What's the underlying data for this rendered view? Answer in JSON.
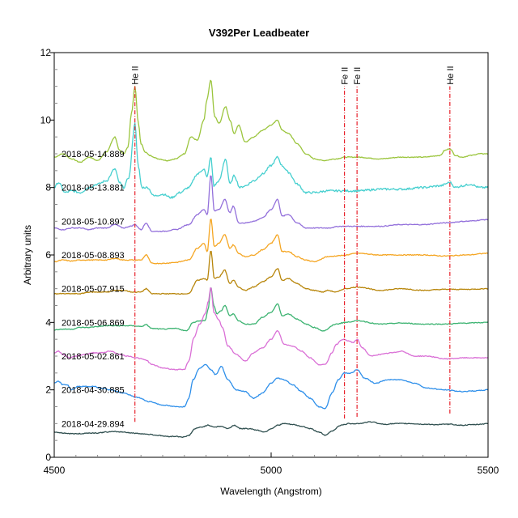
{
  "chart_data": {
    "type": "line",
    "title": "V392Per   Leadbeater",
    "xlabel": "Wavelength (Angstrom)",
    "ylabel": "Arbitrary units",
    "xlim": [
      4500,
      5500
    ],
    "ylim": [
      0,
      12
    ],
    "x_ticks": [
      4500,
      5000,
      5500
    ],
    "x_tick_labels": [
      "4500",
      "5000",
      "5500"
    ],
    "x_minor_step": 50,
    "y_ticks": [
      0,
      2,
      4,
      6,
      8,
      10,
      12
    ],
    "y_tick_labels": [
      "0",
      "2",
      "4",
      "6",
      "8",
      "10",
      "12"
    ],
    "y_minor_step": 0.5,
    "grid": false,
    "legend": "inline labels at left of each spectrum",
    "markers": [
      {
        "label": "He II",
        "wavelength": 4686,
        "y_range": [
          1.05,
          11.0
        ],
        "color": "#e8202a"
      },
      {
        "label": "Fe II",
        "wavelength": 5169,
        "y_range": [
          1.15,
          11.0
        ],
        "color": "#e8202a"
      },
      {
        "label": "Fe II",
        "wavelength": 5198,
        "y_range": [
          1.2,
          11.0
        ],
        "color": "#e8202a"
      },
      {
        "label": "He II",
        "wavelength": 5412,
        "y_range": [
          1.3,
          11.0
        ],
        "color": "#e8202a"
      }
    ],
    "series": [
      {
        "name": "2018-05-14.889",
        "color": "#9bc53d",
        "label_y": 9.0,
        "x": [
          4500,
          4520,
          4540,
          4560,
          4580,
          4600,
          4620,
          4640,
          4650,
          4660,
          4670,
          4678,
          4686,
          4694,
          4700,
          4710,
          4720,
          4740,
          4760,
          4780,
          4800,
          4815,
          4830,
          4845,
          4852,
          4861,
          4870,
          4880,
          4895,
          4905,
          4915,
          4925,
          4940,
          4960,
          4980,
          5000,
          5015,
          5025,
          5040,
          5060,
          5080,
          5100,
          5120,
          5150,
          5170,
          5200,
          5250,
          5300,
          5350,
          5390,
          5400,
          5412,
          5425,
          5440,
          5460,
          5480,
          5500
        ],
        "y": [
          8.9,
          9.0,
          8.85,
          8.75,
          8.9,
          8.8,
          9.05,
          9.5,
          9.1,
          9.0,
          9.2,
          10.2,
          11.0,
          9.9,
          9.3,
          9.05,
          8.95,
          8.85,
          8.8,
          8.85,
          9.0,
          9.5,
          9.4,
          10.0,
          10.6,
          11.2,
          10.1,
          9.9,
          10.4,
          10.0,
          9.6,
          9.85,
          9.35,
          9.5,
          9.7,
          9.85,
          10.0,
          9.7,
          9.6,
          9.3,
          9.0,
          8.85,
          8.8,
          8.85,
          8.9,
          8.9,
          8.85,
          8.9,
          8.9,
          8.95,
          9.1,
          9.15,
          8.95,
          8.9,
          8.95,
          9.0,
          9.0
        ]
      },
      {
        "name": "2018-05-13.881",
        "color": "#45cfcf",
        "label_y": 8.0,
        "x": [
          4500,
          4510,
          4525,
          4540,
          4560,
          4580,
          4600,
          4620,
          4640,
          4650,
          4660,
          4672,
          4686,
          4694,
          4702,
          4715,
          4730,
          4750,
          4770,
          4790,
          4810,
          4830,
          4845,
          4852,
          4861,
          4868,
          4880,
          4895,
          4905,
          4915,
          4928,
          4940,
          4960,
          4980,
          5000,
          5015,
          5025,
          5040,
          5060,
          5080,
          5100,
          5130,
          5160,
          5200,
          5250,
          5300,
          5350,
          5390,
          5412,
          5425,
          5440,
          5460,
          5480,
          5500
        ],
        "y": [
          8.0,
          8.15,
          7.85,
          7.9,
          7.85,
          8.0,
          8.1,
          8.2,
          8.55,
          8.15,
          8.0,
          8.3,
          9.9,
          8.6,
          8.0,
          8.0,
          7.75,
          7.8,
          7.7,
          7.85,
          8.0,
          8.4,
          8.55,
          8.3,
          8.9,
          8.05,
          8.2,
          8.85,
          8.1,
          8.35,
          8.0,
          8.05,
          8.2,
          8.4,
          8.65,
          8.9,
          8.65,
          8.45,
          8.1,
          7.85,
          7.85,
          7.9,
          7.9,
          7.9,
          7.95,
          7.95,
          8.0,
          8.05,
          8.15,
          8.0,
          8.05,
          8.1,
          8.0,
          8.0
        ]
      },
      {
        "name": "2018-05-10.897",
        "color": "#9370db",
        "label_y": 7.0,
        "x": [
          4500,
          4520,
          4540,
          4560,
          4580,
          4600,
          4620,
          4640,
          4660,
          4675,
          4686,
          4700,
          4712,
          4725,
          4750,
          4780,
          4810,
          4830,
          4845,
          4853,
          4861,
          4869,
          4880,
          4893,
          4905,
          4913,
          4925,
          4940,
          4960,
          4980,
          5000,
          5015,
          5025,
          5040,
          5060,
          5080,
          5100,
          5130,
          5160,
          5200,
          5250,
          5300,
          5350,
          5400,
          5450,
          5500
        ],
        "y": [
          6.8,
          6.75,
          6.8,
          6.8,
          6.75,
          6.8,
          6.8,
          6.9,
          6.8,
          6.85,
          6.9,
          6.75,
          6.95,
          6.7,
          6.7,
          6.75,
          6.9,
          7.2,
          7.35,
          7.2,
          8.4,
          7.3,
          7.35,
          7.65,
          7.25,
          7.45,
          6.95,
          6.95,
          7.0,
          7.1,
          7.35,
          7.65,
          7.15,
          7.2,
          6.95,
          6.8,
          6.8,
          6.8,
          6.85,
          6.85,
          6.85,
          6.9,
          6.9,
          6.95,
          7.0,
          7.05
        ]
      },
      {
        "name": "2018-05-08.893",
        "color": "#f5a623",
        "label_y": 6.0,
        "x": [
          4500,
          4520,
          4540,
          4560,
          4580,
          4600,
          4620,
          4640,
          4660,
          4680,
          4700,
          4712,
          4725,
          4750,
          4780,
          4810,
          4830,
          4845,
          4853,
          4861,
          4869,
          4880,
          4893,
          4905,
          4913,
          4925,
          4940,
          4960,
          4980,
          5000,
          5015,
          5025,
          5040,
          5060,
          5080,
          5100,
          5130,
          5160,
          5200,
          5250,
          5300,
          5350,
          5400,
          5450,
          5500
        ],
        "y": [
          5.8,
          5.85,
          5.82,
          5.85,
          5.85,
          5.85,
          5.85,
          5.9,
          5.85,
          5.85,
          5.85,
          6.0,
          5.75,
          5.75,
          5.78,
          5.85,
          6.2,
          6.35,
          6.1,
          7.1,
          6.25,
          6.35,
          6.6,
          6.2,
          6.3,
          6.05,
          5.95,
          6.0,
          6.15,
          6.35,
          6.6,
          6.1,
          6.1,
          5.95,
          5.85,
          5.8,
          5.95,
          5.98,
          6.05,
          6.0,
          6.0,
          6.0,
          5.97,
          6.0,
          6.05
        ]
      },
      {
        "name": "2018-05-07.915",
        "color": "#b8860b",
        "label_y": 5.0,
        "x": [
          4500,
          4520,
          4540,
          4560,
          4580,
          4600,
          4620,
          4640,
          4660,
          4680,
          4700,
          4712,
          4725,
          4750,
          4780,
          4810,
          4830,
          4845,
          4853,
          4861,
          4869,
          4880,
          4893,
          4905,
          4913,
          4925,
          4940,
          4960,
          4980,
          5000,
          5015,
          5025,
          5040,
          5060,
          5080,
          5100,
          5120,
          5130,
          5150,
          5170,
          5200,
          5250,
          5300,
          5350,
          5400,
          5450,
          5500
        ],
        "y": [
          4.85,
          4.85,
          4.85,
          4.85,
          4.9,
          4.9,
          4.9,
          4.95,
          4.95,
          4.9,
          4.9,
          5.0,
          4.85,
          4.85,
          4.85,
          4.85,
          5.25,
          5.3,
          5.25,
          6.15,
          5.3,
          5.35,
          5.55,
          5.15,
          5.25,
          5.05,
          4.95,
          5.05,
          5.2,
          5.35,
          5.6,
          5.25,
          5.3,
          5.15,
          5.0,
          4.95,
          4.9,
          4.95,
          4.9,
          5.0,
          5.05,
          4.95,
          5.0,
          4.95,
          4.98,
          4.98,
          5.0
        ]
      },
      {
        "name": "2018-05-06.869",
        "color": "#3cb371",
        "label_y": 4.0,
        "x": [
          4500,
          4520,
          4540,
          4560,
          4580,
          4600,
          4620,
          4640,
          4660,
          4680,
          4700,
          4712,
          4725,
          4750,
          4780,
          4805,
          4820,
          4835,
          4848,
          4855,
          4861,
          4868,
          4875,
          4885,
          4893,
          4905,
          4913,
          4925,
          4940,
          4960,
          4980,
          5000,
          5015,
          5025,
          5040,
          5060,
          5080,
          5100,
          5120,
          5150,
          5170,
          5200,
          5250,
          5300,
          5350,
          5400,
          5450,
          5500
        ],
        "y": [
          3.78,
          3.8,
          3.8,
          3.85,
          3.85,
          3.88,
          3.9,
          3.9,
          3.9,
          3.9,
          3.88,
          3.93,
          3.82,
          3.8,
          3.82,
          3.75,
          4.0,
          4.05,
          4.05,
          4.4,
          5.05,
          4.5,
          4.25,
          4.35,
          4.5,
          4.2,
          4.25,
          4.05,
          3.95,
          3.95,
          4.15,
          4.3,
          4.55,
          4.2,
          4.25,
          4.1,
          3.95,
          3.85,
          3.75,
          3.95,
          4.0,
          4.05,
          3.95,
          3.98,
          3.95,
          3.95,
          3.98,
          4.0
        ]
      },
      {
        "name": "2018-05-02.861",
        "color": "#da70d6",
        "label_y": 3.0,
        "x": [
          4500,
          4510,
          4520,
          4535,
          4550,
          4570,
          4590,
          4610,
          4630,
          4650,
          4670,
          4690,
          4700,
          4712,
          4725,
          4750,
          4780,
          4800,
          4810,
          4822,
          4835,
          4848,
          4855,
          4861,
          4868,
          4878,
          4888,
          4900,
          4920,
          4940,
          4960,
          4980,
          5000,
          5015,
          5030,
          5050,
          5070,
          5090,
          5110,
          5125,
          5140,
          5150,
          5165,
          5178,
          5190,
          5198,
          5210,
          5230,
          5250,
          5280,
          5300,
          5330,
          5360,
          5400,
          5450,
          5500
        ],
        "y": [
          3.1,
          3.15,
          3.05,
          2.95,
          3.0,
          3.05,
          3.1,
          3.1,
          3.15,
          3.05,
          3.0,
          2.95,
          2.92,
          2.88,
          2.75,
          2.65,
          2.6,
          2.6,
          2.85,
          3.55,
          3.95,
          4.25,
          4.6,
          5.05,
          4.3,
          4.1,
          3.85,
          3.3,
          3.05,
          2.85,
          3.1,
          3.25,
          3.5,
          3.75,
          3.35,
          3.3,
          3.15,
          2.95,
          2.75,
          2.75,
          3.1,
          3.35,
          3.5,
          3.45,
          3.4,
          3.5,
          3.25,
          3.0,
          3.05,
          3.1,
          3.15,
          3.0,
          3.0,
          2.92,
          2.95,
          2.95
        ]
      },
      {
        "name": "2018-04-30.885",
        "color": "#2e8fea",
        "label_y": 2.0,
        "x": [
          4500,
          4510,
          4520,
          4530,
          4540,
          4555,
          4570,
          4590,
          4610,
          4630,
          4660,
          4690,
          4720,
          4750,
          4780,
          4800,
          4810,
          4820,
          4835,
          4850,
          4861,
          4872,
          4885,
          4900,
          4920,
          4940,
          4960,
          4980,
          5000,
          5015,
          5030,
          5050,
          5070,
          5090,
          5110,
          5125,
          5140,
          5155,
          5169,
          5185,
          5198,
          5215,
          5240,
          5270,
          5300,
          5330,
          5360,
          5400,
          5440,
          5470,
          5500
        ],
        "y": [
          2.2,
          2.25,
          2.15,
          2.15,
          2.0,
          2.1,
          2.1,
          2.1,
          2.05,
          2.0,
          1.9,
          1.78,
          1.65,
          1.55,
          1.5,
          1.5,
          1.75,
          2.3,
          2.65,
          2.75,
          2.6,
          2.45,
          2.7,
          2.3,
          2.0,
          1.95,
          1.75,
          1.9,
          2.2,
          2.35,
          2.3,
          2.15,
          1.95,
          1.75,
          1.5,
          1.45,
          1.9,
          2.3,
          2.5,
          2.5,
          2.6,
          2.35,
          2.2,
          2.3,
          2.3,
          2.2,
          2.05,
          2.0,
          1.95,
          1.97,
          2.0
        ]
      },
      {
        "name": "2018-04-29.894",
        "color": "#2f4f4f",
        "label_y": 1.0,
        "x": [
          4500,
          4520,
          4540,
          4560,
          4580,
          4600,
          4620,
          4640,
          4660,
          4680,
          4700,
          4720,
          4740,
          4760,
          4780,
          4800,
          4810,
          4825,
          4840,
          4855,
          4870,
          4885,
          4900,
          4915,
          4930,
          4950,
          4970,
          4985,
          5000,
          5015,
          5030,
          5050,
          5070,
          5090,
          5110,
          5125,
          5140,
          5160,
          5180,
          5200,
          5230,
          5260,
          5290,
          5320,
          5350,
          5380,
          5410,
          5440,
          5470,
          5500
        ],
        "y": [
          0.75,
          0.72,
          0.7,
          0.7,
          0.72,
          0.72,
          0.75,
          0.76,
          0.75,
          0.72,
          0.7,
          0.68,
          0.65,
          0.62,
          0.62,
          0.6,
          0.65,
          0.85,
          0.9,
          0.95,
          0.9,
          0.92,
          0.85,
          0.95,
          0.85,
          0.85,
          0.8,
          0.75,
          0.85,
          0.95,
          1.0,
          0.97,
          0.92,
          0.85,
          0.75,
          0.65,
          0.78,
          0.95,
          1.0,
          1.0,
          1.05,
          0.98,
          1.0,
          1.0,
          0.98,
          0.97,
          0.98,
          0.95,
          0.97,
          1.0
        ]
      }
    ]
  }
}
